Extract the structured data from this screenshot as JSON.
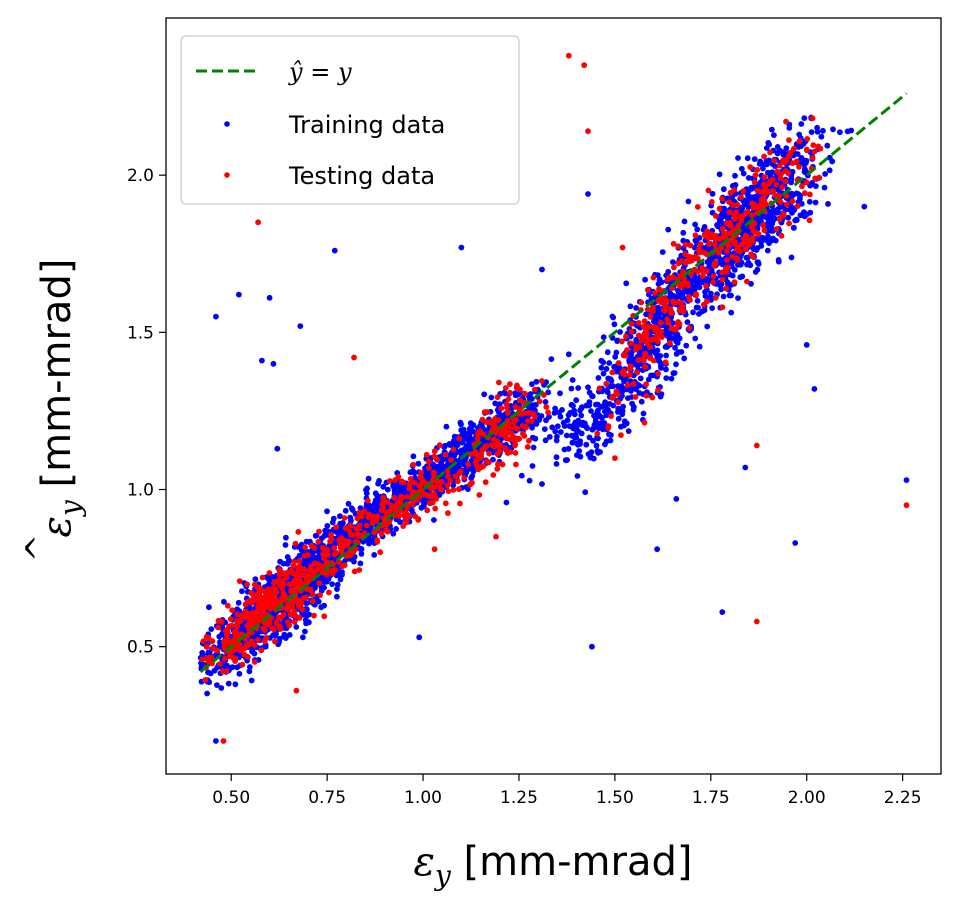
{
  "chart_data": {
    "type": "scatter",
    "title": "",
    "xlabel": {
      "symbol": "ε",
      "subscript": "y",
      "unit": " [mm-mrad]"
    },
    "ylabel": {
      "symbol": "ε",
      "subscript": "y",
      "hat": "^",
      "unit": " [mm-mrad]"
    },
    "xlim": [
      0.33,
      2.35
    ],
    "ylim": [
      0.095,
      2.5
    ],
    "xticks": [
      0.5,
      0.75,
      1.0,
      1.25,
      1.5,
      1.75,
      2.0,
      2.25
    ],
    "xtick_labels": [
      "0.50",
      "0.75",
      "1.00",
      "1.25",
      "1.50",
      "1.75",
      "2.00",
      "2.25"
    ],
    "yticks": [
      0.5,
      1.0,
      1.5,
      2.0
    ],
    "ytick_labels": [
      "0.5",
      "1.0",
      "1.5",
      "2.0"
    ],
    "legend_position": "top-left",
    "reference_line": {
      "name": "ŷ = y",
      "label_parts": [
        "ŷ",
        " = ",
        "y"
      ],
      "x": [
        0.42,
        2.26
      ],
      "y": [
        0.42,
        2.26
      ],
      "color": "#008000",
      "style": "dashed"
    },
    "series": [
      {
        "name": "Training data",
        "color": "#0000ff",
        "clusters": [
          {
            "cx": 0.62,
            "cy": 0.64,
            "sx": 0.1,
            "sy": 0.12,
            "n": 900,
            "corr": 0.87,
            "seed": 11
          },
          {
            "cx": 0.95,
            "cy": 0.97,
            "sx": 0.12,
            "sy": 0.11,
            "n": 600,
            "corr": 0.92,
            "seed": 12
          },
          {
            "cx": 1.18,
            "cy": 1.18,
            "sx": 0.07,
            "sy": 0.07,
            "n": 350,
            "corr": 0.8,
            "seed": 13
          },
          {
            "cx": 1.43,
            "cy": 1.22,
            "sx": 0.07,
            "sy": 0.08,
            "n": 160,
            "corr": 0.5,
            "seed": 14
          },
          {
            "cx": 1.6,
            "cy": 1.5,
            "sx": 0.07,
            "sy": 0.13,
            "n": 400,
            "corr": 0.75,
            "seed": 15
          },
          {
            "cx": 1.85,
            "cy": 1.85,
            "sx": 0.1,
            "sy": 0.14,
            "n": 750,
            "corr": 0.8,
            "seed": 16
          }
        ],
        "outliers": [
          [
            0.46,
            1.55
          ],
          [
            0.52,
            1.62
          ],
          [
            0.58,
            1.41
          ],
          [
            0.6,
            1.61
          ],
          [
            0.61,
            1.4
          ],
          [
            0.68,
            1.52
          ],
          [
            0.77,
            1.76
          ],
          [
            1.1,
            1.77
          ],
          [
            1.31,
            1.7
          ],
          [
            1.43,
            1.94
          ],
          [
            1.44,
            0.5
          ],
          [
            0.99,
            0.53
          ],
          [
            1.61,
            0.81
          ],
          [
            1.66,
            0.97
          ],
          [
            1.78,
            0.61
          ],
          [
            1.84,
            1.07
          ],
          [
            1.97,
            0.83
          ],
          [
            2.0,
            1.46
          ],
          [
            2.02,
            1.32
          ],
          [
            2.15,
            1.9
          ],
          [
            2.26,
            1.03
          ],
          [
            0.46,
            0.2
          ],
          [
            0.62,
            1.13
          ],
          [
            1.38,
            1.43
          ]
        ]
      },
      {
        "name": "Testing data",
        "color": "#ff0000",
        "clusters": [
          {
            "cx": 0.6,
            "cy": 0.62,
            "sx": 0.1,
            "sy": 0.11,
            "n": 380,
            "corr": 0.88,
            "seed": 21
          },
          {
            "cx": 0.92,
            "cy": 0.93,
            "sx": 0.11,
            "sy": 0.1,
            "n": 220,
            "corr": 0.9,
            "seed": 22
          },
          {
            "cx": 1.2,
            "cy": 1.17,
            "sx": 0.05,
            "sy": 0.07,
            "n": 140,
            "corr": 0.6,
            "seed": 23
          },
          {
            "cx": 1.58,
            "cy": 1.47,
            "sx": 0.06,
            "sy": 0.12,
            "n": 130,
            "corr": 0.7,
            "seed": 24
          },
          {
            "cx": 1.83,
            "cy": 1.84,
            "sx": 0.1,
            "sy": 0.13,
            "n": 250,
            "corr": 0.82,
            "seed": 25
          }
        ],
        "outliers": [
          [
            1.38,
            2.38
          ],
          [
            1.42,
            2.35
          ],
          [
            1.43,
            2.14
          ],
          [
            0.57,
            1.85
          ],
          [
            0.82,
            1.42
          ],
          [
            2.26,
            0.95
          ],
          [
            1.87,
            0.58
          ],
          [
            1.87,
            1.14
          ],
          [
            1.19,
            0.85
          ],
          [
            1.03,
            0.81
          ],
          [
            0.48,
            0.2
          ],
          [
            1.52,
            1.77
          ],
          [
            1.5,
            1.1
          ],
          [
            0.67,
            0.36
          ]
        ]
      }
    ]
  }
}
